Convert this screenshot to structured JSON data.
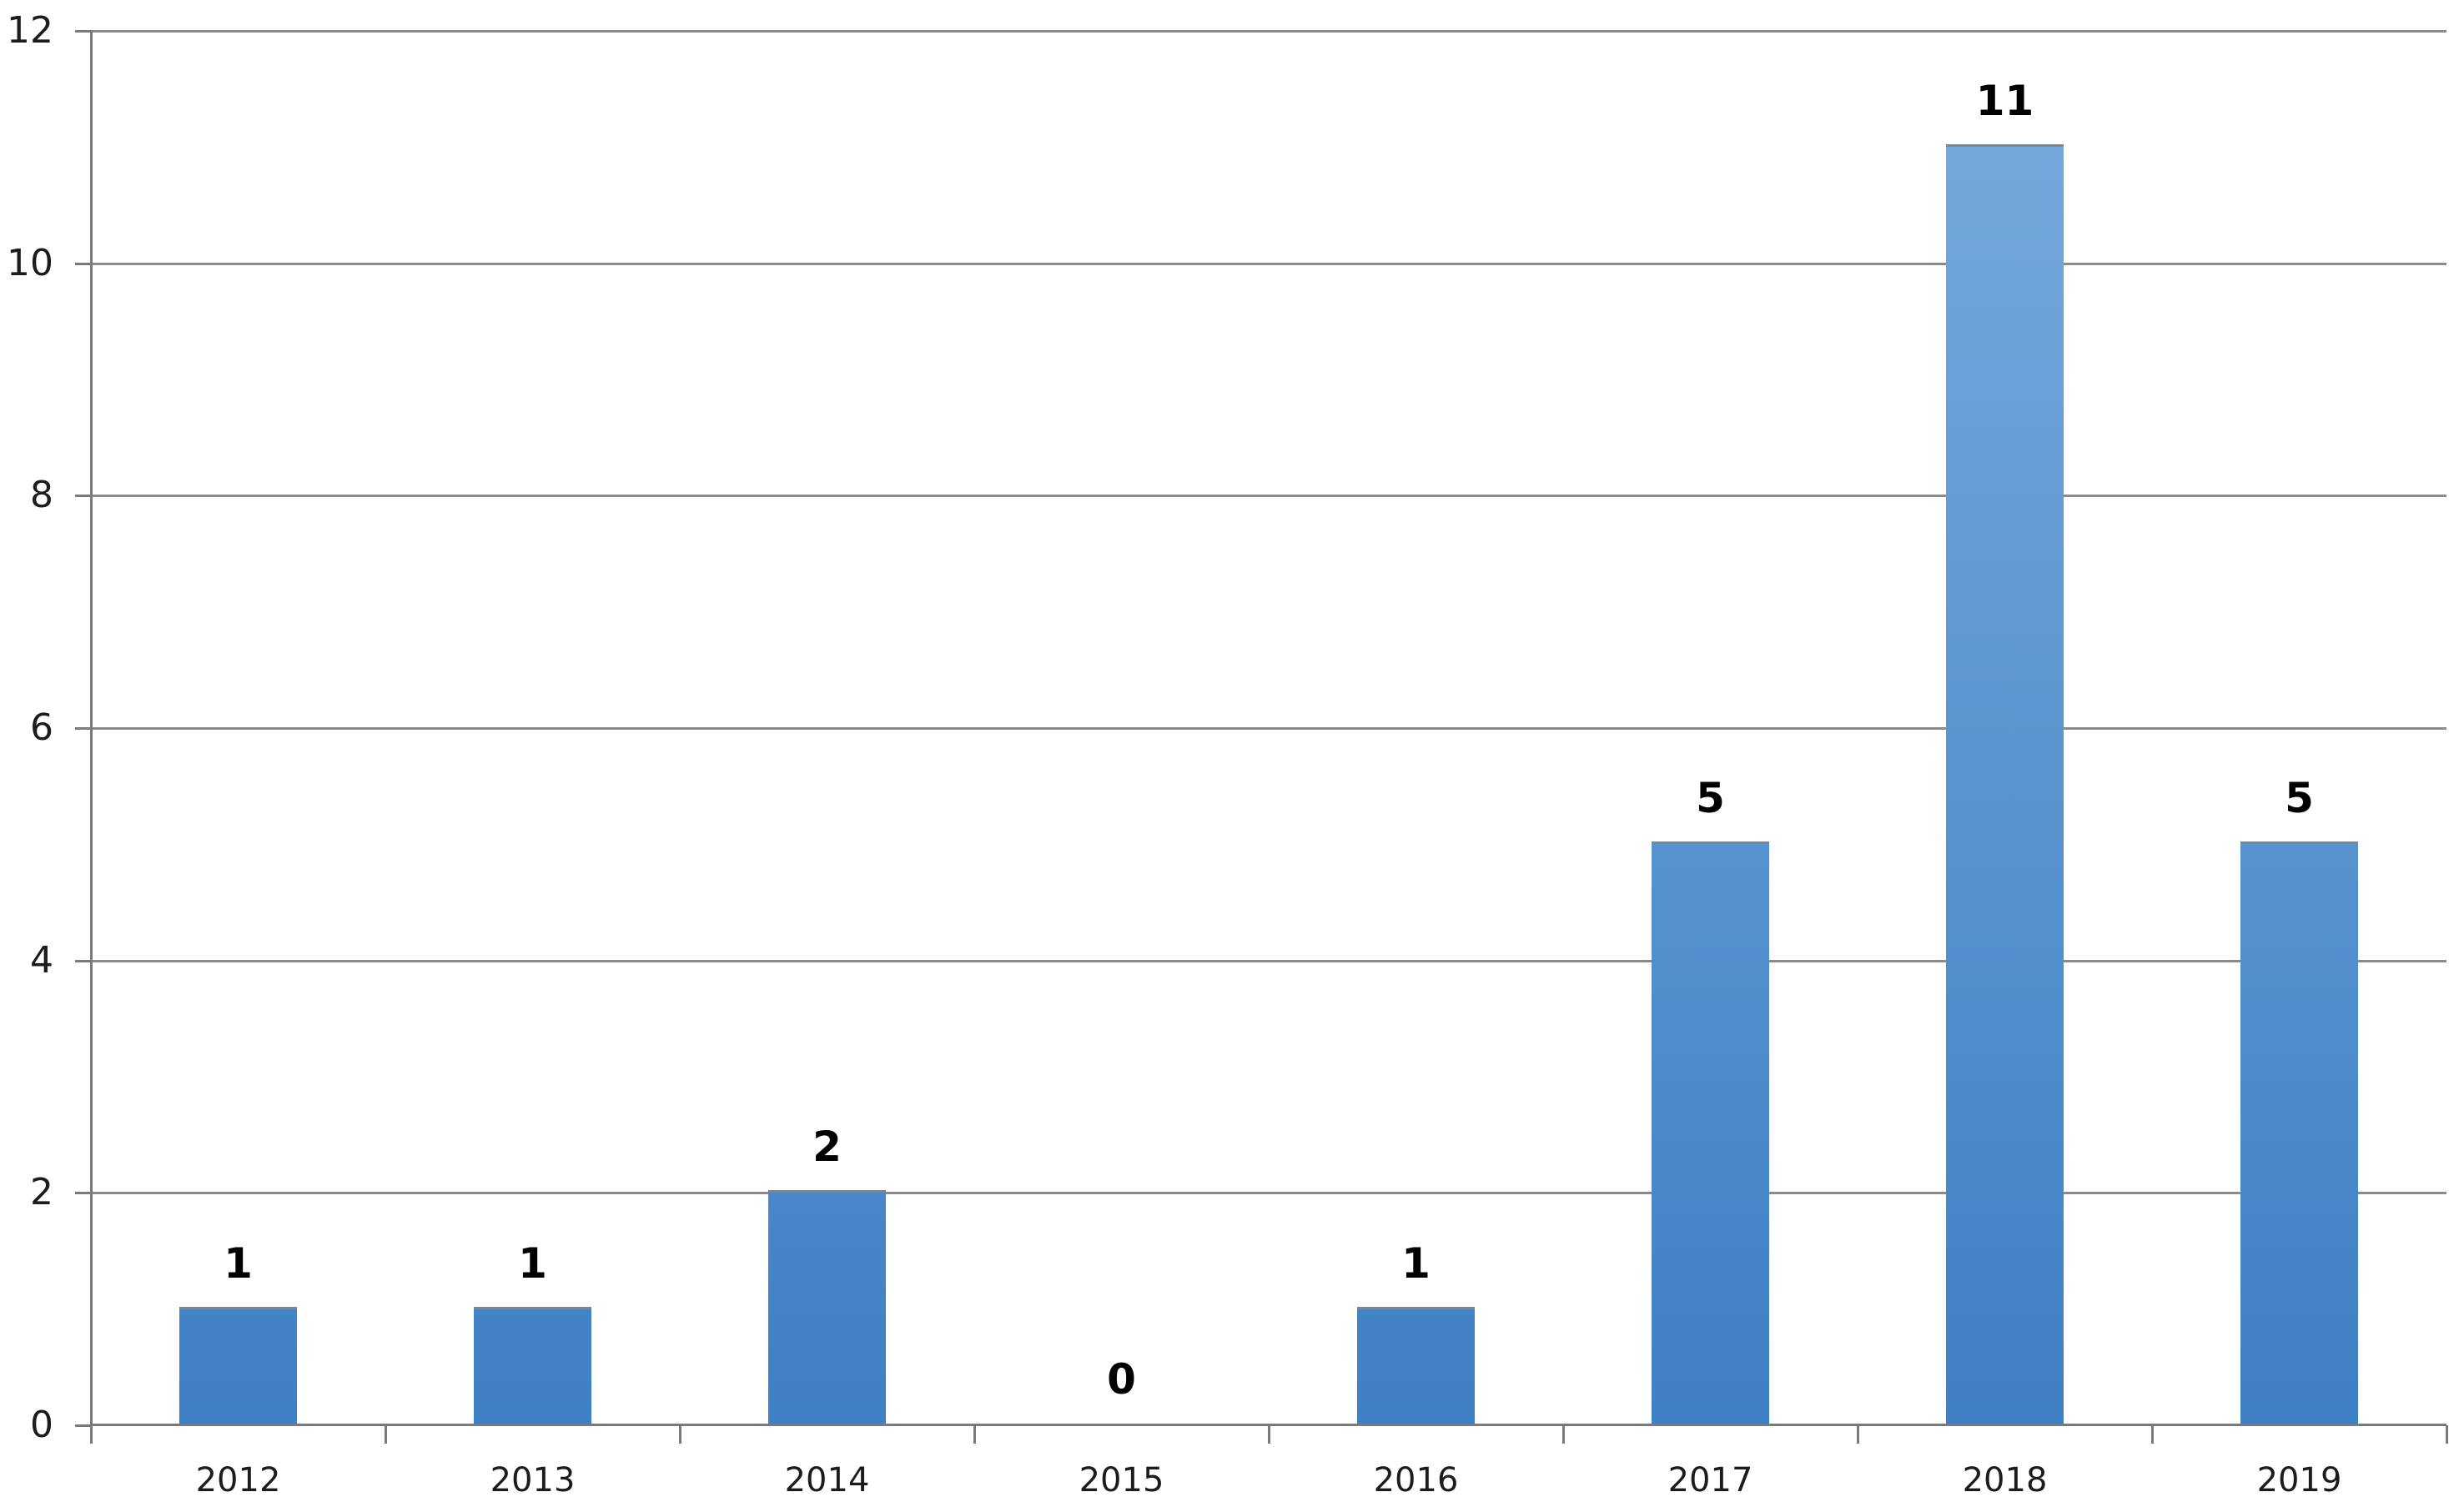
{
  "chart_data": {
    "type": "bar",
    "title": "",
    "xlabel": "",
    "ylabel": "",
    "categories": [
      "2012",
      "2013",
      "2014",
      "2015",
      "2016",
      "2017",
      "2018",
      "2019"
    ],
    "values": [
      1,
      1,
      2,
      0,
      1,
      5,
      11,
      5
    ],
    "value_labels": [
      "1",
      "1",
      "2",
      "0",
      "1",
      "5",
      "11",
      "5"
    ],
    "ylim": [
      0,
      12
    ],
    "yticks": [
      0,
      2,
      4,
      6,
      8,
      10,
      12
    ],
    "grid": true,
    "legend": false,
    "colors": {
      "bar_gradient_top": "#79abde",
      "bar_gradient_bottom": "#3e80c4",
      "bar_top_edge": "#7d858d",
      "gridline": "#8a8a8a",
      "axis": "#7a7a7a",
      "value_label": "#000000",
      "tick_label": "#1c1c1c",
      "background": "#ffffff"
    }
  }
}
